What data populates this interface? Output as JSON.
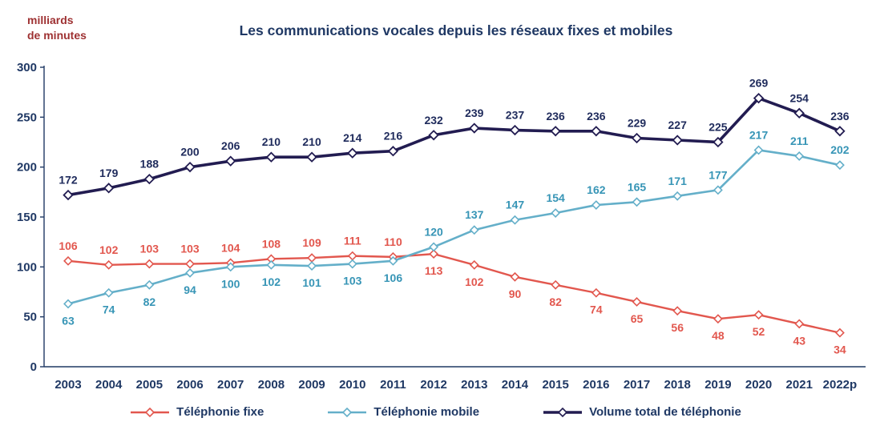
{
  "title": "Les communications vocales depuis les réseaux fixes et mobiles",
  "y_axis_unit": "milliards\nde minutes",
  "chart_data": {
    "type": "line",
    "title": "Les communications vocales depuis les réseaux fixes et mobiles",
    "ylabel": "milliards de minutes",
    "xlabel": "",
    "ylim": [
      0,
      300
    ],
    "yticks": [
      0,
      50,
      100,
      150,
      200,
      250,
      300
    ],
    "grid": false,
    "legend_position": "bottom",
    "axis_color": "#1F3864",
    "tick_label_color": "#1F3864",
    "categories": [
      "2003",
      "2004",
      "2005",
      "2006",
      "2007",
      "2008",
      "2009",
      "2010",
      "2011",
      "2012",
      "2013",
      "2014",
      "2015",
      "2016",
      "2017",
      "2018",
      "2019",
      "2020",
      "2021",
      "2022p"
    ],
    "series": [
      {
        "name": "Téléphonie fixe",
        "color": "#E2574E",
        "label_color": "#E2574E",
        "marker": "diamond",
        "line_width": 2.4,
        "values": [
          106,
          102,
          103,
          103,
          104,
          108,
          109,
          111,
          110,
          113,
          102,
          90,
          82,
          74,
          65,
          56,
          48,
          52,
          43,
          34
        ],
        "label_positions": [
          "above",
          "above",
          "above",
          "above",
          "above",
          "above",
          "above",
          "above",
          "above",
          "below",
          "below",
          "below",
          "below",
          "below",
          "below",
          "below",
          "below",
          "below",
          "below",
          "below"
        ]
      },
      {
        "name": "Téléphonie mobile",
        "color": "#64AFC9",
        "label_color": "#3795B6",
        "marker": "diamond",
        "line_width": 2.6,
        "values": [
          63,
          74,
          82,
          94,
          100,
          102,
          101,
          103,
          106,
          120,
          137,
          147,
          154,
          162,
          165,
          171,
          177,
          217,
          211,
          202
        ],
        "label_positions": [
          "below",
          "below",
          "below",
          "below",
          "below",
          "below",
          "below",
          "below",
          "below",
          "above",
          "above",
          "above",
          "above",
          "above",
          "above",
          "above",
          "above",
          "above",
          "above",
          "above"
        ]
      },
      {
        "name": "Volume total de téléphonie",
        "color": "#221C51",
        "label_color": "#1F2B5C",
        "marker": "diamond",
        "line_width": 3.6,
        "values": [
          172,
          179,
          188,
          200,
          206,
          210,
          210,
          214,
          216,
          232,
          239,
          237,
          236,
          236,
          229,
          227,
          225,
          269,
          254,
          236
        ],
        "label_positions": [
          "above",
          "above",
          "above",
          "above",
          "above",
          "above",
          "above",
          "above",
          "above",
          "above",
          "above",
          "above",
          "above",
          "above",
          "above",
          "above",
          "above",
          "above",
          "above",
          "above"
        ]
      }
    ]
  }
}
